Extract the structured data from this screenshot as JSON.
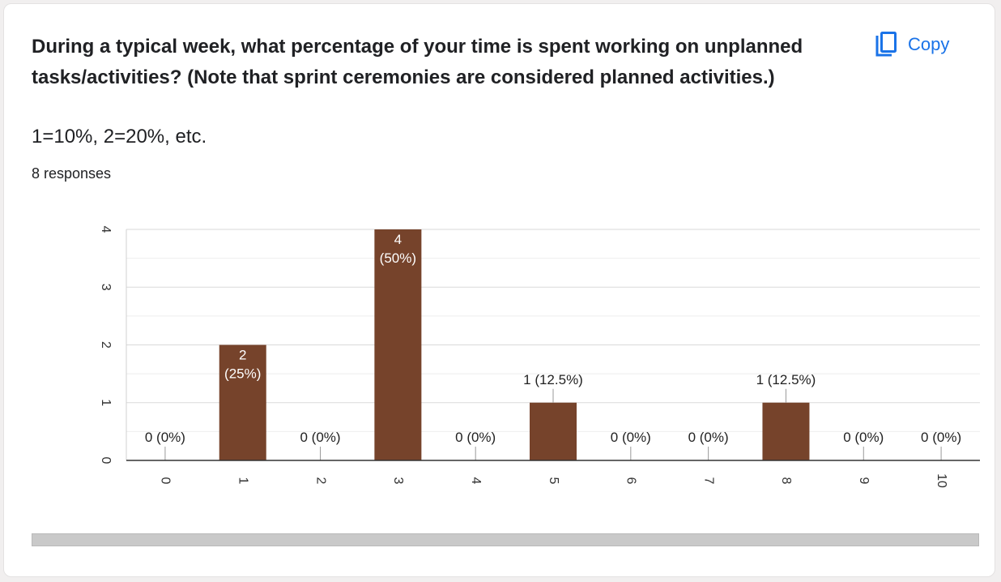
{
  "question": {
    "line1": "During a typical week, what percentage of your time is spent working on unplanned",
    "line2": "tasks/activities? (Note that sprint ceremonies are considered planned activities.)"
  },
  "subnote": "1=10%, 2=20%, etc.",
  "responses": "8 responses",
  "copy_button": {
    "label": "Copy",
    "icon": "copy-icon"
  },
  "colors": {
    "bar": "#76432b",
    "accent": "#1a73e8",
    "grid": "#e0e0e0",
    "axis": "#333333"
  },
  "chart_data": {
    "type": "bar",
    "categories": [
      "0",
      "1",
      "2",
      "3",
      "4",
      "5",
      "6",
      "7",
      "8",
      "9",
      "10"
    ],
    "values": [
      0,
      2,
      0,
      4,
      0,
      1,
      0,
      0,
      1,
      0,
      0
    ],
    "data_labels": [
      "0 (0%)",
      "2\n(25%)",
      "0 (0%)",
      "4\n(50%)",
      "0 (0%)",
      "1 (12.5%)",
      "0 (0%)",
      "0 (0%)",
      "1 (12.5%)",
      "0 (0%)",
      "0 (0%)"
    ],
    "yticks": [
      0,
      1,
      2,
      3,
      4
    ],
    "ylim": [
      0,
      4
    ],
    "grid": true,
    "legend": "none",
    "title": "",
    "xlabel": "",
    "ylabel": ""
  }
}
